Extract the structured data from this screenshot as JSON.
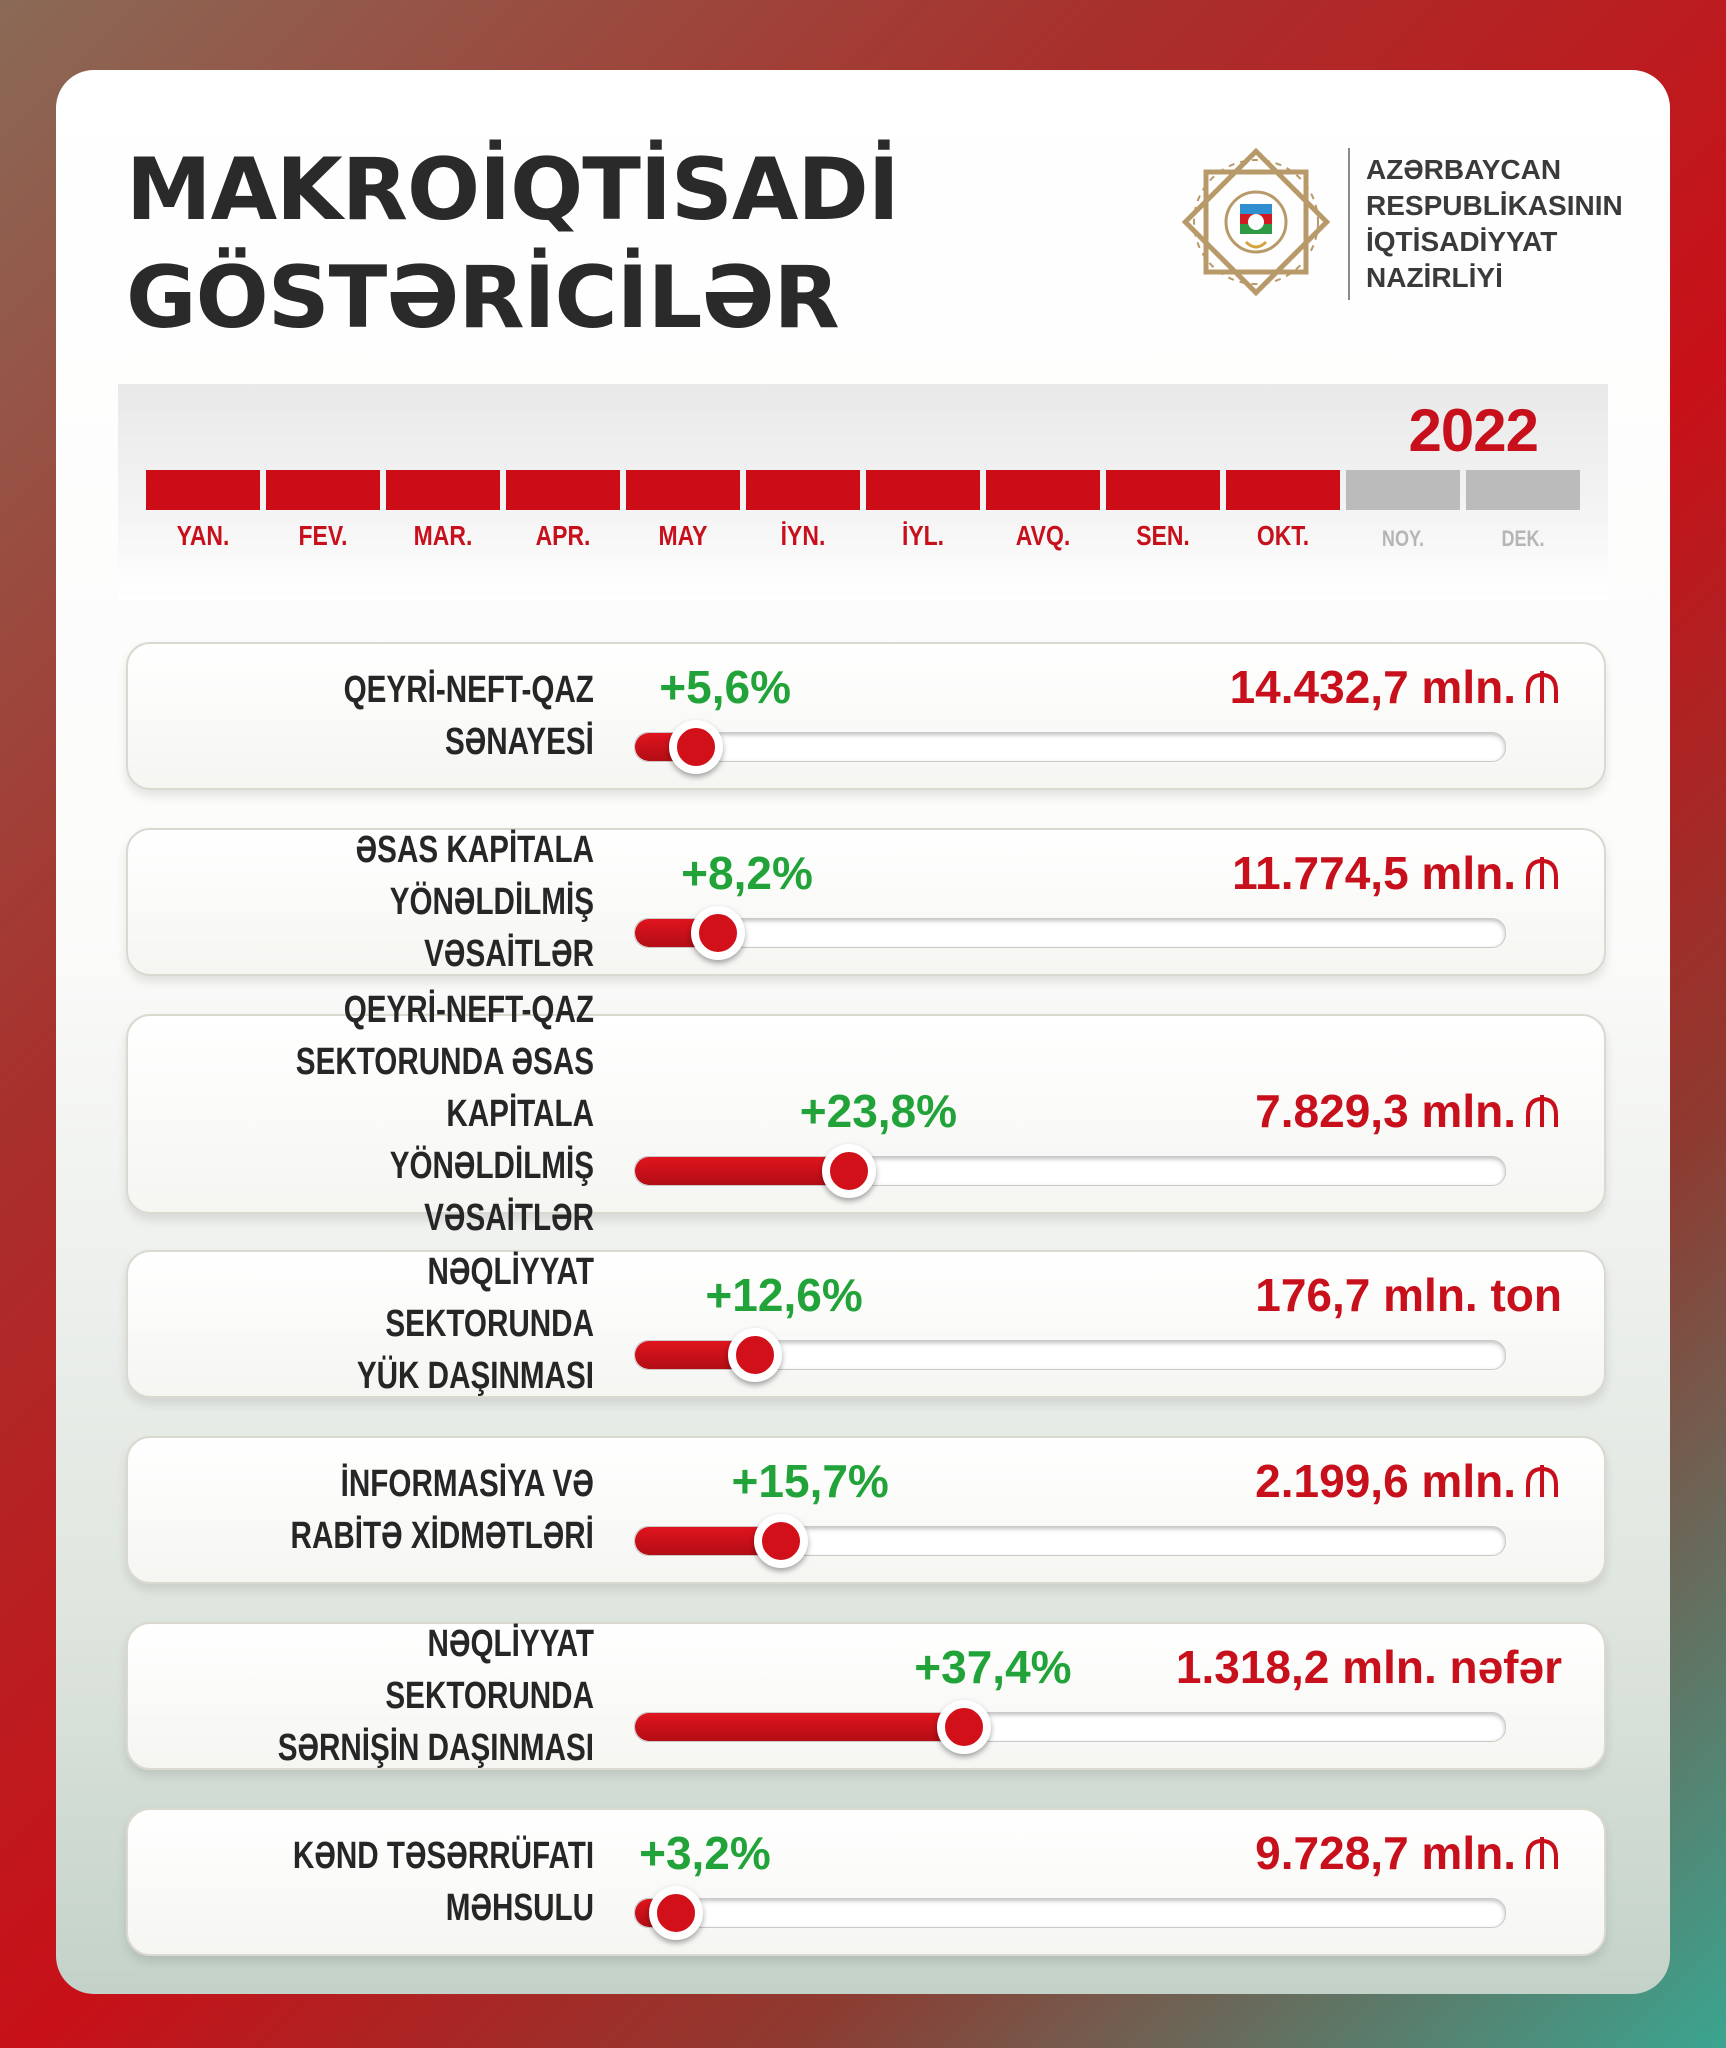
{
  "header": {
    "title_line1": "MAKROİQTİSADİ",
    "title_line2": "GÖSTƏRİCİLƏR",
    "ministry_lines": [
      "AZƏRBAYCAN",
      "RESPUBLİKASININ",
      "İQTİSADİYYAT",
      "NAZİRLİYİ"
    ]
  },
  "timeline": {
    "year": "2022",
    "months": [
      {
        "label": "YAN.",
        "active": true
      },
      {
        "label": "FEV.",
        "active": true
      },
      {
        "label": "MAR.",
        "active": true
      },
      {
        "label": "APR.",
        "active": true
      },
      {
        "label": "MAY",
        "active": true
      },
      {
        "label": "İYN.",
        "active": true
      },
      {
        "label": "İYL.",
        "active": true
      },
      {
        "label": "AVQ.",
        "active": true
      },
      {
        "label": "SEN.",
        "active": true
      },
      {
        "label": "OKT.",
        "active": true
      },
      {
        "label": "NOY.",
        "active": false
      },
      {
        "label": "DEK.",
        "active": false
      }
    ]
  },
  "colors": {
    "accent_red": "#c8101c",
    "growth_green": "#22a33a",
    "inactive_gray": "#bbbbbb",
    "title_dark": "#2a2a2a"
  },
  "icons": {
    "emblem": "state-emblem-icon",
    "currency": "manat-icon"
  },
  "chart_data": {
    "type": "bar",
    "categories": [
      "QEYRİ-NEFT-QAZ\nSƏNAYESİ",
      "ƏSAS KAPİTALA\nYÖNƏLDİLMİŞ VƏSAİTLƏR",
      "QEYRİ-NEFT-QAZ\nSEKTORUNDA ƏSAS KAPİTALA\nYÖNƏLDİLMİŞ VƏSAİTLƏR",
      "NƏQLİYYAT SEKTORUNDA\nYÜK DAŞINMASI",
      "İNFORMASİYA VƏ\nRABİTƏ XİDMƏTLƏRİ",
      "NƏQLİYYAT SEKTORUNDA\nSƏRNİŞİN DAŞINMASI",
      "KƏND TƏSƏRRÜFATI\nMƏHSULU"
    ],
    "values": [
      5.6,
      8.2,
      23.8,
      12.6,
      15.7,
      37.4,
      3.2
    ],
    "value_labels": [
      "+5,6%",
      "+8,2%",
      "+23,8%",
      "+12,6%",
      "+15,7%",
      "+37,4%",
      "+3,2%"
    ],
    "amounts": [
      "14.432,7 mln.",
      "11.774,5 mln.",
      "7.829,3 mln.",
      "176,7 mln. ton",
      "2.199,6 mln.",
      "1.318,2 mln. nəfər",
      "9.728,7 mln."
    ],
    "amount_currency_icon": [
      true,
      true,
      true,
      false,
      true,
      false,
      true
    ],
    "xlim": [
      0,
      100
    ],
    "orientation": "horizontal",
    "grid": false
  }
}
